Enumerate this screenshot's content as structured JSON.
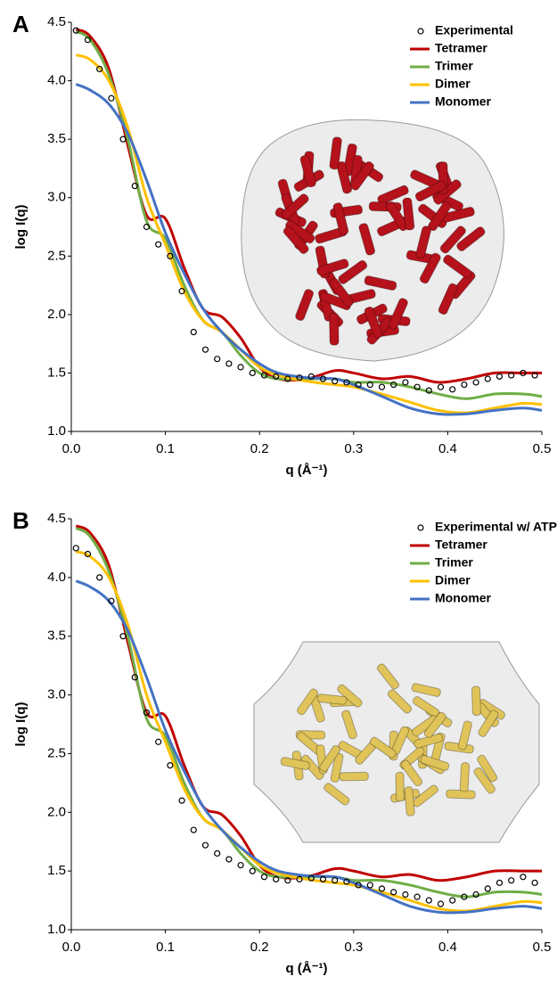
{
  "chart_data": [
    {
      "type": "line",
      "panel_label": "A",
      "ylabel": "log I(q)",
      "xlabel": "q (Å⁻¹)",
      "xlim": [
        0,
        0.5
      ],
      "ylim": [
        1,
        4.5
      ],
      "xticks": [
        {
          "value": 0,
          "label": "0.0"
        },
        0.1,
        0.2,
        0.3,
        0.4,
        0.5
      ],
      "yticks": [
        {
          "value": 1,
          "label": "1.0"
        },
        1.5,
        {
          "value": 2,
          "label": "2.0"
        },
        2.5,
        {
          "value": 3,
          "label": "3.0"
        },
        3.5,
        {
          "value": 4,
          "label": "4.0"
        },
        4.5
      ],
      "legend": "upper right",
      "x": [
        0.005,
        0.02,
        0.04,
        0.06,
        0.08,
        0.1,
        0.12,
        0.14,
        0.16,
        0.18,
        0.2,
        0.22,
        0.25,
        0.28,
        0.3,
        0.33,
        0.36,
        0.39,
        0.42,
        0.45,
        0.48,
        0.5
      ],
      "series": [
        {
          "name": "Experimental",
          "color": "#000000",
          "style": "points",
          "x": [
            0.005,
            0.0175,
            0.03,
            0.0425,
            0.055,
            0.0675,
            0.08,
            0.0925,
            0.105,
            0.1175,
            0.13,
            0.1425,
            0.155,
            0.1675,
            0.18,
            0.1925,
            0.205,
            0.2175,
            0.23,
            0.2425,
            0.255,
            0.2675,
            0.28,
            0.2925,
            0.305,
            0.3175,
            0.33,
            0.3425,
            0.355,
            0.3675,
            0.38,
            0.3925,
            0.405,
            0.4175,
            0.43,
            0.4425,
            0.455,
            0.4675,
            0.48,
            0.4925
          ],
          "values": [
            4.43,
            4.35,
            4.1,
            3.85,
            3.5,
            3.1,
            2.75,
            2.6,
            2.5,
            2.2,
            1.85,
            1.7,
            1.62,
            1.58,
            1.55,
            1.5,
            1.48,
            1.47,
            1.45,
            1.46,
            1.47,
            1.45,
            1.43,
            1.42,
            1.4,
            1.4,
            1.38,
            1.4,
            1.42,
            1.38,
            1.35,
            1.38,
            1.36,
            1.4,
            1.42,
            1.45,
            1.47,
            1.48,
            1.5,
            1.48
          ]
        },
        {
          "name": "Tetramer",
          "color": "#c00000",
          "style": "line",
          "values": [
            4.44,
            4.38,
            4.1,
            3.45,
            2.85,
            2.82,
            2.4,
            2.05,
            1.98,
            1.8,
            1.55,
            1.45,
            1.45,
            1.52,
            1.5,
            1.45,
            1.47,
            1.42,
            1.45,
            1.5,
            1.5,
            1.5
          ]
        },
        {
          "name": "Trimer",
          "color": "#70ad47",
          "style": "line",
          "values": [
            4.42,
            4.35,
            4.05,
            3.5,
            2.8,
            2.65,
            2.25,
            1.95,
            1.85,
            1.65,
            1.5,
            1.45,
            1.45,
            1.45,
            1.42,
            1.42,
            1.38,
            1.32,
            1.28,
            1.32,
            1.32,
            1.3
          ]
        },
        {
          "name": "Dimer",
          "color": "#ffc000",
          "style": "line",
          "values": [
            4.22,
            4.18,
            4.0,
            3.6,
            3.0,
            2.6,
            2.2,
            1.95,
            1.85,
            1.7,
            1.55,
            1.48,
            1.43,
            1.4,
            1.38,
            1.32,
            1.25,
            1.18,
            1.16,
            1.2,
            1.24,
            1.23
          ]
        },
        {
          "name": "Monomer",
          "color": "#4472c4",
          "style": "line",
          "values": [
            3.97,
            3.92,
            3.8,
            3.55,
            3.15,
            2.7,
            2.35,
            2.05,
            1.85,
            1.7,
            1.58,
            1.5,
            1.46,
            1.45,
            1.4,
            1.3,
            1.2,
            1.15,
            1.15,
            1.18,
            1.2,
            1.18
          ]
        }
      ]
    },
    {
      "type": "line",
      "panel_label": "B",
      "ylabel": "log I(q)",
      "xlabel": "q (Å⁻¹)",
      "xlim": [
        0,
        0.5
      ],
      "ylim": [
        1,
        4.5
      ],
      "xticks": [
        {
          "value": 0,
          "label": "0.0"
        },
        0.1,
        0.2,
        0.3,
        0.4,
        0.5
      ],
      "yticks": [
        {
          "value": 1,
          "label": "1.0"
        },
        1.5,
        {
          "value": 2,
          "label": "2.0"
        },
        2.5,
        {
          "value": 3,
          "label": "3.0"
        },
        3.5,
        {
          "value": 4,
          "label": "4.0"
        },
        4.5
      ],
      "legend": "upper right",
      "x": [
        0.005,
        0.02,
        0.04,
        0.06,
        0.08,
        0.1,
        0.12,
        0.14,
        0.16,
        0.18,
        0.2,
        0.22,
        0.25,
        0.28,
        0.3,
        0.33,
        0.36,
        0.39,
        0.42,
        0.45,
        0.48,
        0.5
      ],
      "series": [
        {
          "name": "Experimental w/ ATP",
          "color": "#000000",
          "style": "points",
          "x": [
            0.005,
            0.0175,
            0.03,
            0.0425,
            0.055,
            0.0675,
            0.08,
            0.0925,
            0.105,
            0.1175,
            0.13,
            0.1425,
            0.155,
            0.1675,
            0.18,
            0.1925,
            0.205,
            0.2175,
            0.23,
            0.2425,
            0.255,
            0.2675,
            0.28,
            0.2925,
            0.305,
            0.3175,
            0.33,
            0.3425,
            0.355,
            0.3675,
            0.38,
            0.3925,
            0.405,
            0.4175,
            0.43,
            0.4425,
            0.455,
            0.4675,
            0.48,
            0.4925
          ],
          "values": [
            4.25,
            4.2,
            4.0,
            3.8,
            3.5,
            3.15,
            2.85,
            2.6,
            2.4,
            2.1,
            1.85,
            1.72,
            1.65,
            1.6,
            1.55,
            1.5,
            1.45,
            1.43,
            1.42,
            1.43,
            1.44,
            1.43,
            1.42,
            1.41,
            1.38,
            1.38,
            1.35,
            1.32,
            1.3,
            1.28,
            1.25,
            1.22,
            1.25,
            1.28,
            1.3,
            1.35,
            1.4,
            1.42,
            1.45,
            1.4
          ]
        },
        {
          "name": "Tetramer",
          "color": "#c00000",
          "style": "line",
          "values": [
            4.44,
            4.38,
            4.1,
            3.45,
            2.85,
            2.82,
            2.4,
            2.05,
            1.98,
            1.8,
            1.55,
            1.45,
            1.45,
            1.52,
            1.5,
            1.45,
            1.47,
            1.42,
            1.45,
            1.5,
            1.5,
            1.5
          ]
        },
        {
          "name": "Trimer",
          "color": "#70ad47",
          "style": "line",
          "values": [
            4.42,
            4.35,
            4.05,
            3.5,
            2.8,
            2.65,
            2.25,
            1.95,
            1.85,
            1.65,
            1.5,
            1.45,
            1.45,
            1.45,
            1.42,
            1.42,
            1.38,
            1.32,
            1.28,
            1.32,
            1.32,
            1.3
          ]
        },
        {
          "name": "Dimer",
          "color": "#ffc000",
          "style": "line",
          "values": [
            4.22,
            4.18,
            4.0,
            3.6,
            3.0,
            2.6,
            2.2,
            1.95,
            1.85,
            1.7,
            1.55,
            1.48,
            1.43,
            1.4,
            1.38,
            1.32,
            1.25,
            1.18,
            1.16,
            1.2,
            1.24,
            1.23
          ]
        },
        {
          "name": "Monomer",
          "color": "#4472c4",
          "style": "line",
          "values": [
            3.97,
            3.92,
            3.8,
            3.55,
            3.15,
            2.7,
            2.35,
            2.05,
            1.85,
            1.7,
            1.58,
            1.5,
            1.46,
            1.45,
            1.4,
            1.3,
            1.2,
            1.15,
            1.15,
            1.18,
            1.2,
            1.18
          ]
        }
      ]
    }
  ]
}
